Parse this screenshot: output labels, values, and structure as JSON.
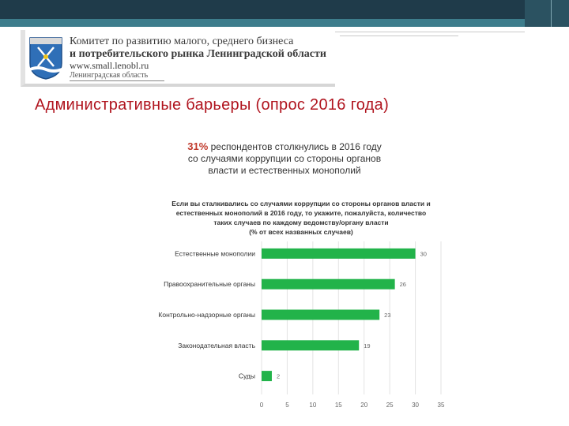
{
  "organization": {
    "line1": "Комитет по развитию малого, среднего бизнеса",
    "line2": "и потребительского рынка Ленинградской области",
    "site": "www.small.lenobl.ru",
    "region": "Ленинградская область"
  },
  "slide_title": "Административные барьеры (опрос 2016 года)",
  "headline": {
    "percent": "31%",
    "line1_rest": "респондентов столкнулись в 2016 году",
    "line2": "со случаями коррупции со стороны органов",
    "line3": "власти и естественных монополий"
  },
  "question": {
    "line1": "Если вы сталкивались со случаями коррупции со стороны органов власти и",
    "line2": "естественных монополий в 2016 году, то укажите, пожалуйста, количество",
    "line3": "таких случаев по каждому ведомству/органу власти",
    "line4": "(% от всех названных случаев)"
  },
  "colors": {
    "bar": "#22b34a",
    "title": "#b0141e",
    "percent": "#c0392b",
    "topbar": "#1f3b4a",
    "topbar_accent": "#3d7d8c"
  },
  "chart_data": {
    "type": "bar",
    "orientation": "horizontal",
    "categories": [
      "Естественные монополии",
      "Правоохранительные органы",
      "Контрольно-надзорные органы",
      "Законодательная власть",
      "Суды"
    ],
    "values": [
      30,
      26,
      23,
      19,
      2
    ],
    "xlim": [
      0,
      35
    ],
    "xticks": [
      0,
      5,
      10,
      15,
      20,
      25,
      30,
      35
    ],
    "grid": true,
    "data_labels": true
  }
}
